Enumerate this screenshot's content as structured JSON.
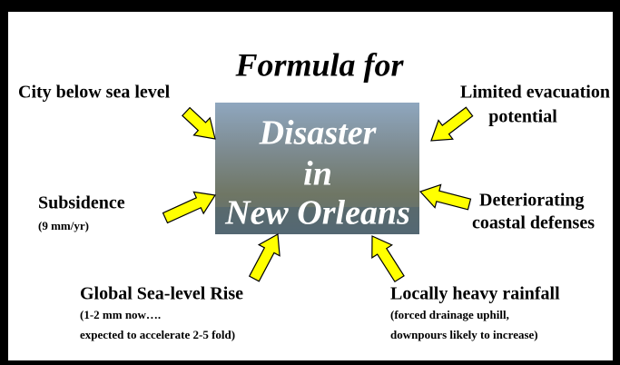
{
  "title": "Formula for",
  "center": [
    "Disaster",
    "in",
    "New Orleans"
  ],
  "factors": [
    {
      "label": [
        "City below sea level"
      ]
    },
    {
      "label": [
        "Limited evacuation",
        "potential"
      ]
    },
    {
      "label": [
        "Subsidence"
      ],
      "note": [
        "(9 mm/yr)"
      ]
    },
    {
      "label": [
        "Deteriorating",
        "coastal defenses"
      ]
    },
    {
      "label": [
        "Global Sea-level Rise"
      ],
      "note": [
        "(1-2 mm now….",
        "expected to accelerate 2-5 fold)"
      ]
    },
    {
      "label": [
        "Locally heavy rainfall"
      ],
      "note": [
        "(forced drainage uphill,",
        "downpours likely to increase)"
      ]
    }
  ]
}
